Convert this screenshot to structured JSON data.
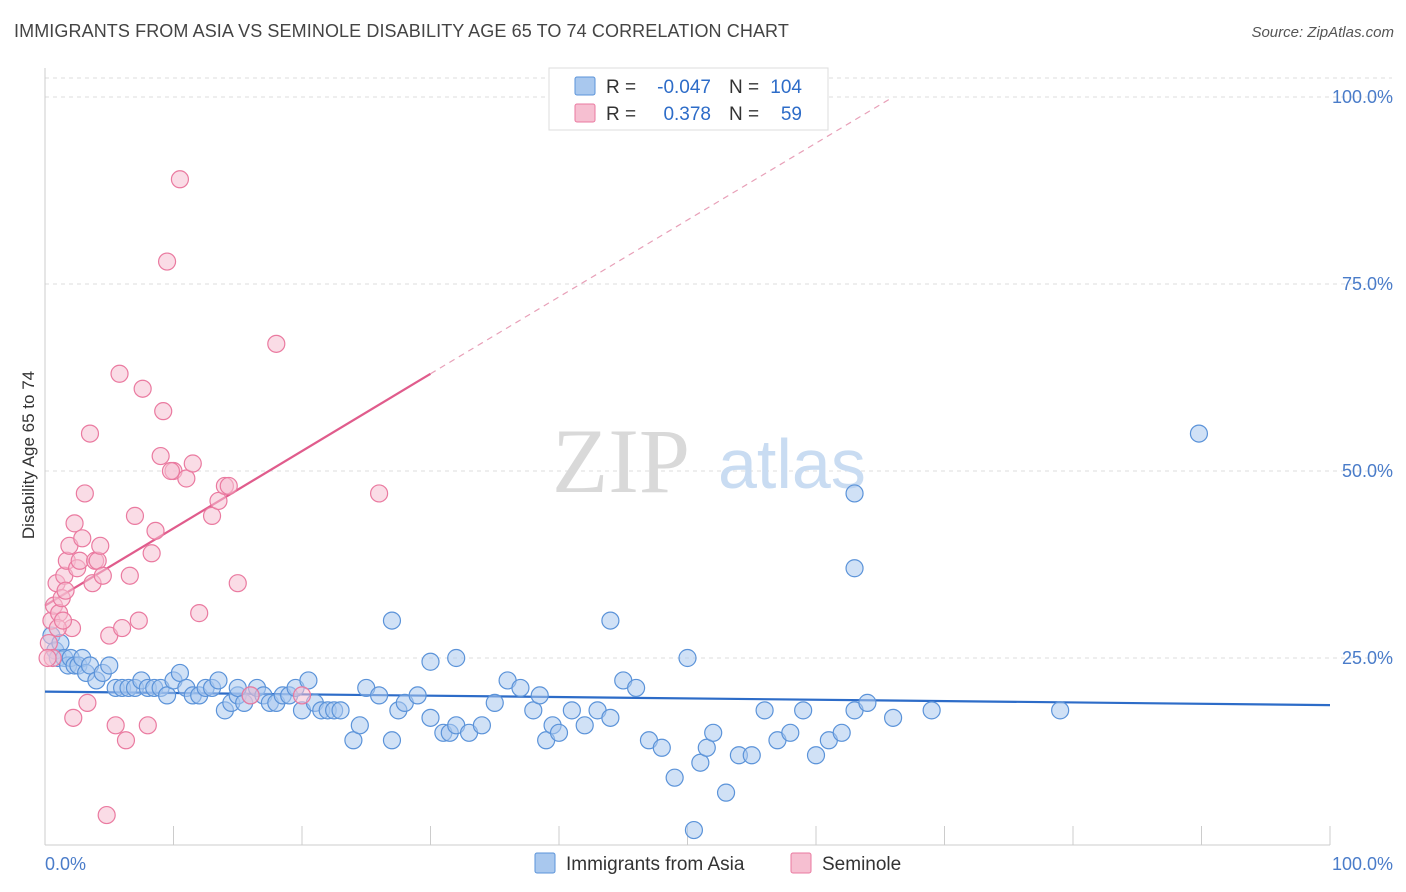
{
  "header": {
    "title": "IMMIGRANTS FROM ASIA VS SEMINOLE DISABILITY AGE 65 TO 74 CORRELATION CHART",
    "source": "Source: ZipAtlas.com"
  },
  "watermark": {
    "zip": "ZIP",
    "atlas": "atlas"
  },
  "stats_legend": {
    "rows": [
      {
        "r_label": "R =",
        "r_value": "-0.047",
        "n_label": "N =",
        "n_value": "104",
        "color": "#8fb8e8"
      },
      {
        "r_label": "R =",
        "r_value": "0.378",
        "n_label": "N =",
        "n_value": "59",
        "color": "#f4a7c0"
      }
    ]
  },
  "chart_data": {
    "type": "scatter",
    "title": "IMMIGRANTS FROM ASIA VS SEMINOLE DISABILITY AGE 65 TO 74 CORRELATION CHART",
    "xlabel": "",
    "ylabel": "Disability Age 65 to 74",
    "xlim": [
      0,
      100
    ],
    "ylim": [
      0,
      103
    ],
    "x_tick_labels": [
      "0.0%",
      "100.0%"
    ],
    "y_ticks": [
      25,
      50,
      75,
      100
    ],
    "y_tick_labels": [
      "25.0%",
      "50.0%",
      "75.0%",
      "100.0%"
    ],
    "grid": "horizontal-dashed",
    "legend_position": "bottom",
    "series": [
      {
        "name": "Immigrants from Asia",
        "color": "#5b93d9",
        "fill": "#a9c8ee",
        "trend": {
          "x": [
            0,
            100
          ],
          "y": [
            20.5,
            18.7
          ],
          "style": "solid",
          "color": "#2d6cc8"
        },
        "points": [
          [
            0.5,
            28
          ],
          [
            0.8,
            26
          ],
          [
            1,
            25
          ],
          [
            1.2,
            27
          ],
          [
            1.5,
            25
          ],
          [
            1.8,
            24
          ],
          [
            2,
            25
          ],
          [
            2.3,
            24
          ],
          [
            2.6,
            24
          ],
          [
            2.9,
            25
          ],
          [
            3.2,
            23
          ],
          [
            3.5,
            24
          ],
          [
            4,
            22
          ],
          [
            4.5,
            23
          ],
          [
            5,
            24
          ],
          [
            5.5,
            21
          ],
          [
            6,
            21
          ],
          [
            6.5,
            21
          ],
          [
            7,
            21
          ],
          [
            7.5,
            22
          ],
          [
            8,
            21
          ],
          [
            8.5,
            21
          ],
          [
            9,
            21
          ],
          [
            9.5,
            20
          ],
          [
            10,
            22
          ],
          [
            10.5,
            23
          ],
          [
            11,
            21
          ],
          [
            11.5,
            20
          ],
          [
            12,
            20
          ],
          [
            12.5,
            21
          ],
          [
            13,
            21
          ],
          [
            13.5,
            22
          ],
          [
            14,
            18
          ],
          [
            14.5,
            19
          ],
          [
            15,
            20
          ],
          [
            15.5,
            19
          ],
          [
            16,
            20
          ],
          [
            16.5,
            21
          ],
          [
            17,
            20
          ],
          [
            17.5,
            19
          ],
          [
            18,
            19
          ],
          [
            18.5,
            20
          ],
          [
            19,
            20
          ],
          [
            19.5,
            21
          ],
          [
            20,
            18
          ],
          [
            20.5,
            22
          ],
          [
            21,
            19
          ],
          [
            21.5,
            18
          ],
          [
            22,
            18
          ],
          [
            22.5,
            18
          ],
          [
            23,
            18
          ],
          [
            24,
            14
          ],
          [
            24.5,
            16
          ],
          [
            25,
            21
          ],
          [
            26,
            20
          ],
          [
            27,
            14
          ],
          [
            27.5,
            18
          ],
          [
            28,
            19
          ],
          [
            29,
            20
          ],
          [
            30,
            17
          ],
          [
            31,
            15
          ],
          [
            31.5,
            15
          ],
          [
            32,
            16
          ],
          [
            33,
            15
          ],
          [
            34,
            16
          ],
          [
            35,
            19
          ],
          [
            36,
            22
          ],
          [
            37,
            21
          ],
          [
            38,
            18
          ],
          [
            38.5,
            20
          ],
          [
            39,
            14
          ],
          [
            39.5,
            16
          ],
          [
            40,
            15
          ],
          [
            41,
            18
          ],
          [
            42,
            16
          ],
          [
            43,
            18
          ],
          [
            44,
            17
          ],
          [
            45,
            22
          ],
          [
            46,
            21
          ],
          [
            47,
            14
          ],
          [
            48,
            13
          ],
          [
            49,
            9
          ],
          [
            50,
            25
          ],
          [
            50.5,
            2
          ],
          [
            51,
            11
          ],
          [
            51.5,
            13
          ],
          [
            52,
            15
          ],
          [
            53,
            7
          ],
          [
            54,
            12
          ],
          [
            55,
            12
          ],
          [
            56,
            18
          ],
          [
            57,
            14
          ],
          [
            58,
            15
          ],
          [
            59,
            18
          ],
          [
            60,
            12
          ],
          [
            61,
            14
          ],
          [
            62,
            15
          ],
          [
            63,
            18
          ],
          [
            64,
            19
          ],
          [
            66,
            17
          ],
          [
            69,
            18
          ],
          [
            32,
            25
          ],
          [
            27,
            30
          ],
          [
            79,
            18
          ]
        ],
        "highlight_points": [
          [
            89.8,
            55
          ],
          [
            63,
            47
          ],
          [
            63,
            37
          ],
          [
            30,
            24.5
          ],
          [
            44,
            30
          ],
          [
            15,
            21
          ]
        ]
      },
      {
        "name": "Seminole",
        "color": "#ea7aa0",
        "fill": "#f6bfd1",
        "trend": {
          "x": [
            0,
            30
          ],
          "y": [
            32,
            63
          ],
          "style": "solid",
          "color": "#e05c8c"
        },
        "trend_extension": {
          "x": [
            30,
            66
          ],
          "y": [
            63,
            100
          ],
          "style": "dashed",
          "color": "#e8a0b8"
        },
        "points": [
          [
            0.3,
            27
          ],
          [
            0.5,
            30
          ],
          [
            0.7,
            32
          ],
          [
            0.9,
            35
          ],
          [
            1.1,
            31
          ],
          [
            1.3,
            33
          ],
          [
            1.5,
            36
          ],
          [
            1.7,
            38
          ],
          [
            1.9,
            40
          ],
          [
            2.1,
            29
          ],
          [
            2.3,
            43
          ],
          [
            2.5,
            37
          ],
          [
            2.7,
            38
          ],
          [
            2.9,
            41
          ],
          [
            3.1,
            47
          ],
          [
            3.3,
            19
          ],
          [
            3.5,
            55
          ],
          [
            3.7,
            35
          ],
          [
            3.9,
            38
          ],
          [
            4.1,
            38
          ],
          [
            4.3,
            40
          ],
          [
            4.5,
            36
          ],
          [
            5,
            28
          ],
          [
            5.5,
            16
          ],
          [
            5.8,
            63
          ],
          [
            6,
            29
          ],
          [
            6.3,
            14
          ],
          [
            6.6,
            36
          ],
          [
            7,
            44
          ],
          [
            7.3,
            30
          ],
          [
            7.6,
            61
          ],
          [
            8,
            16
          ],
          [
            8.3,
            39
          ],
          [
            8.6,
            42
          ],
          [
            9,
            52
          ],
          [
            9.2,
            58
          ],
          [
            9.5,
            78
          ],
          [
            10,
            50
          ],
          [
            10.5,
            89
          ],
          [
            11,
            49
          ],
          [
            11.5,
            51
          ],
          [
            12,
            31
          ],
          [
            13,
            44
          ],
          [
            13.5,
            46
          ],
          [
            14,
            48
          ],
          [
            14.3,
            48
          ],
          [
            15,
            35
          ],
          [
            16,
            20
          ],
          [
            18,
            67
          ],
          [
            20,
            20
          ],
          [
            1,
            29
          ],
          [
            0.6,
            25
          ],
          [
            4.8,
            4
          ],
          [
            2.2,
            17
          ],
          [
            1.4,
            30
          ],
          [
            0.2,
            25
          ],
          [
            9.8,
            50
          ],
          [
            26,
            47
          ],
          [
            1.6,
            34
          ]
        ]
      }
    ]
  },
  "bottom_legend": {
    "items": [
      {
        "label": "Immigrants from Asia",
        "color": "#a9c8ee",
        "stroke": "#5b93d9"
      },
      {
        "label": "Seminole",
        "color": "#f6bfd1",
        "stroke": "#ea7aa0"
      }
    ]
  }
}
